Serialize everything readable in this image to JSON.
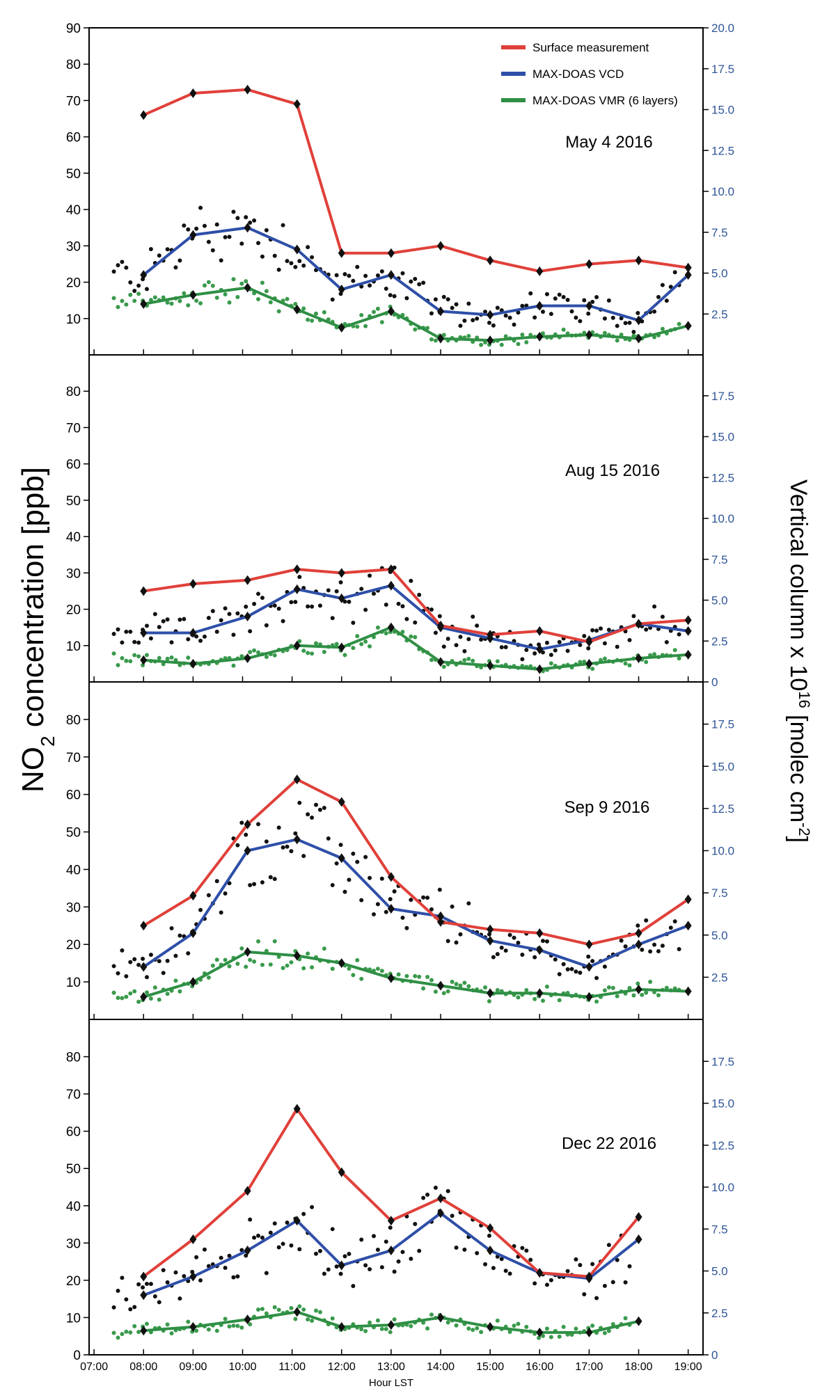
{
  "chart_data": {
    "type": "line",
    "ylabel_left_parts": [
      "NO",
      "2",
      " concentration [ppb]"
    ],
    "ylabel_right_parts": [
      "Vertical column x 10",
      "16",
      " [molec cm",
      "-2",
      "]"
    ],
    "xlabel": "Hour  LST",
    "x_ticks": [
      "07:00",
      "08:00",
      "09:00",
      "10:00",
      "11:00",
      "12:00",
      "13:00",
      "14:00",
      "15:00",
      "16:00",
      "17:00",
      "18:00",
      "19:00"
    ],
    "xlim": [
      6.9,
      19.3
    ],
    "ylim_left": [
      0,
      90
    ],
    "ylim_right": [
      0,
      20
    ],
    "series_styles": [
      {
        "name": "Surface measurement",
        "color": "#e0403a"
      },
      {
        "name": "MAX-DOAS  VCD",
        "color": "#2e4fa8"
      },
      {
        "name": "MAX-DOAS  VMR (6 layers)",
        "color": "#2f8f45"
      }
    ],
    "point_colors": {
      "vcd_points": "#111111",
      "vmr_points": "#3a9a4c"
    },
    "panels": [
      {
        "title": "May 4  2016",
        "left_ticks": [
          "10",
          "20",
          "30",
          "40",
          "50",
          "60",
          "70",
          "80",
          "90"
        ],
        "right_ticks": [
          "2.5",
          "5.0",
          "7.5",
          "10.0",
          "12.5",
          "15.0",
          "17.5",
          "20.0"
        ],
        "series": [
          {
            "key": "surface",
            "x": [
              8,
              9,
              10.1,
              11.1,
              12,
              13,
              14,
              15,
              16,
              17,
              18,
              19
            ],
            "y": [
              66,
              72,
              73,
              69,
              28,
              28,
              30,
              26,
              23,
              25,
              26,
              24
            ]
          },
          {
            "key": "vcd",
            "x": [
              8,
              9,
              10.1,
              11.1,
              12,
              13,
              14,
              15,
              16,
              17,
              18,
              19
            ],
            "y": [
              22,
              33,
              35,
              29,
              18,
              22,
              12,
              11,
              13.5,
              13.5,
              9.5,
              22
            ]
          },
          {
            "key": "vmr",
            "x": [
              8,
              9,
              10.1,
              11.1,
              12,
              13,
              14,
              15,
              16,
              17,
              18,
              19
            ],
            "y": [
              14,
              16.5,
              18.5,
              12.5,
              7.5,
              12,
              4.5,
              4,
              5,
              5.5,
              4.5,
              8
            ]
          }
        ]
      },
      {
        "title": "Aug 15  2016",
        "left_ticks": [
          "10",
          "20",
          "30",
          "40",
          "50",
          "60",
          "70",
          "80"
        ],
        "right_ticks": [
          "0",
          "2.5",
          "5.0",
          "7.5",
          "10.0",
          "12.5",
          "15.0",
          "17.5"
        ],
        "series": [
          {
            "key": "surface",
            "x": [
              8,
              9,
              10.1,
              11.1,
              12,
              13,
              14,
              15,
              16,
              17,
              18,
              19
            ],
            "y": [
              25,
              27,
              28,
              31,
              30,
              31,
              15.5,
              13,
              14,
              11,
              16,
              17
            ]
          },
          {
            "key": "vcd",
            "x": [
              8,
              9,
              10.1,
              11.1,
              12,
              13,
              14,
              15,
              16,
              17,
              18,
              19
            ],
            "y": [
              13.5,
              13.5,
              18,
              25.5,
              23,
              26.5,
              15,
              12,
              9,
              11.5,
              16,
              14
            ]
          },
          {
            "key": "vmr",
            "x": [
              8,
              9,
              10.1,
              11.1,
              12,
              13,
              14,
              15,
              16,
              17,
              18,
              19
            ],
            "y": [
              6,
              5,
              6.5,
              10,
              9.5,
              15,
              5.5,
              4.5,
              3.5,
              5,
              6.5,
              7.5
            ]
          }
        ]
      },
      {
        "title": "Sep 9  2016",
        "left_ticks": [
          "10",
          "20",
          "30",
          "40",
          "50",
          "60",
          "70",
          "80"
        ],
        "right_ticks": [
          "2.5",
          "5.0",
          "7.5",
          "10.0",
          "12.5",
          "15.0",
          "17.5"
        ],
        "series": [
          {
            "key": "surface",
            "x": [
              8,
              9,
              10.1,
              11.1,
              12,
              13,
              14,
              15,
              16,
              17,
              18,
              19
            ],
            "y": [
              25,
              33,
              52,
              64,
              58,
              38,
              26,
              24,
              23,
              20,
              23,
              32
            ]
          },
          {
            "key": "vcd",
            "x": [
              8,
              9,
              10.1,
              11.1,
              12,
              13,
              14,
              15,
              16,
              17,
              18,
              19
            ],
            "y": [
              14,
              23,
              45,
              48,
              43,
              29.5,
              27.5,
              21,
              18.5,
              14,
              20,
              25
            ]
          },
          {
            "key": "vmr",
            "x": [
              8,
              9,
              10.1,
              11.1,
              12,
              13,
              14,
              15,
              16,
              17,
              18,
              19
            ],
            "y": [
              6,
              10,
              18,
              17,
              15,
              11,
              9,
              7,
              7,
              6,
              8,
              7.5
            ]
          }
        ]
      },
      {
        "title": "Dec 22  2016",
        "left_ticks": [
          "0",
          "10",
          "20",
          "30",
          "40",
          "50",
          "60",
          "70",
          "80"
        ],
        "right_ticks": [
          "0",
          "2.5",
          "5.0",
          "7.5",
          "10.0",
          "12.5",
          "15.0",
          "17.5"
        ],
        "series": [
          {
            "key": "surface",
            "x": [
              8,
              9,
              10.1,
              11.1,
              12,
              13,
              14,
              15,
              16,
              17,
              18
            ],
            "y": [
              21,
              31,
              44,
              66,
              49,
              36,
              42,
              34,
              22,
              21,
              37
            ]
          },
          {
            "key": "vcd",
            "x": [
              8,
              9,
              10.1,
              11.1,
              12,
              13,
              14,
              15,
              16,
              17,
              18
            ],
            "y": [
              16,
              21,
              28,
              36,
              24,
              28,
              38,
              28,
              22,
              20.5,
              31
            ]
          },
          {
            "key": "vmr",
            "x": [
              8,
              9,
              10.1,
              11.1,
              12,
              13,
              14,
              15,
              16,
              17,
              18
            ],
            "y": [
              6.5,
              7.5,
              9.5,
              11.5,
              7.5,
              8,
              10,
              7.5,
              6,
              6,
              9
            ]
          }
        ]
      }
    ]
  }
}
